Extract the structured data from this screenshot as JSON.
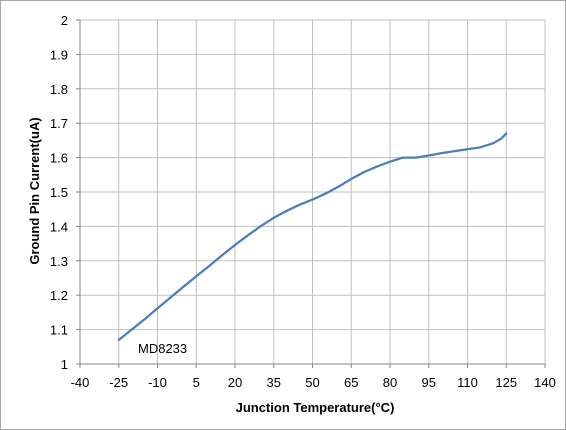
{
  "chart_data": {
    "type": "line",
    "title": "",
    "xlabel": "Junction Temperature(°C)",
    "ylabel": "Ground Pin Current(uA)",
    "xlim": [
      -40,
      140
    ],
    "ylim": [
      1,
      2
    ],
    "x_ticks": [
      "-40",
      "-25",
      "-10",
      "5",
      "20",
      "35",
      "50",
      "65",
      "80",
      "95",
      "110",
      "125",
      "140"
    ],
    "y_ticks": [
      "1",
      "1.1",
      "1.2",
      "1.3",
      "1.4",
      "1.5",
      "1.6",
      "1.7",
      "1.8",
      "1.9",
      "2"
    ],
    "grid": true,
    "annotation": "MD8233",
    "series": [
      {
        "color": "#4a7ebb",
        "points": [
          [
            -25,
            1.07
          ],
          [
            -20,
            1.1
          ],
          [
            -15,
            1.13
          ],
          [
            -10,
            1.162
          ],
          [
            -5,
            1.193
          ],
          [
            0,
            1.224
          ],
          [
            5,
            1.255
          ],
          [
            10,
            1.285
          ],
          [
            15,
            1.316
          ],
          [
            20,
            1.346
          ],
          [
            25,
            1.374
          ],
          [
            30,
            1.401
          ],
          [
            35,
            1.425
          ],
          [
            40,
            1.445
          ],
          [
            45,
            1.463
          ],
          [
            50,
            1.478
          ],
          [
            55,
            1.495
          ],
          [
            60,
            1.515
          ],
          [
            65,
            1.538
          ],
          [
            70,
            1.558
          ],
          [
            75,
            1.574
          ],
          [
            80,
            1.588
          ],
          [
            85,
            1.6
          ],
          [
            88,
            1.6
          ],
          [
            90,
            1.6
          ],
          [
            95,
            1.606
          ],
          [
            100,
            1.613
          ],
          [
            105,
            1.619
          ],
          [
            110,
            1.624
          ],
          [
            115,
            1.63
          ],
          [
            120,
            1.642
          ],
          [
            123,
            1.655
          ],
          [
            125,
            1.67
          ]
        ]
      }
    ]
  }
}
